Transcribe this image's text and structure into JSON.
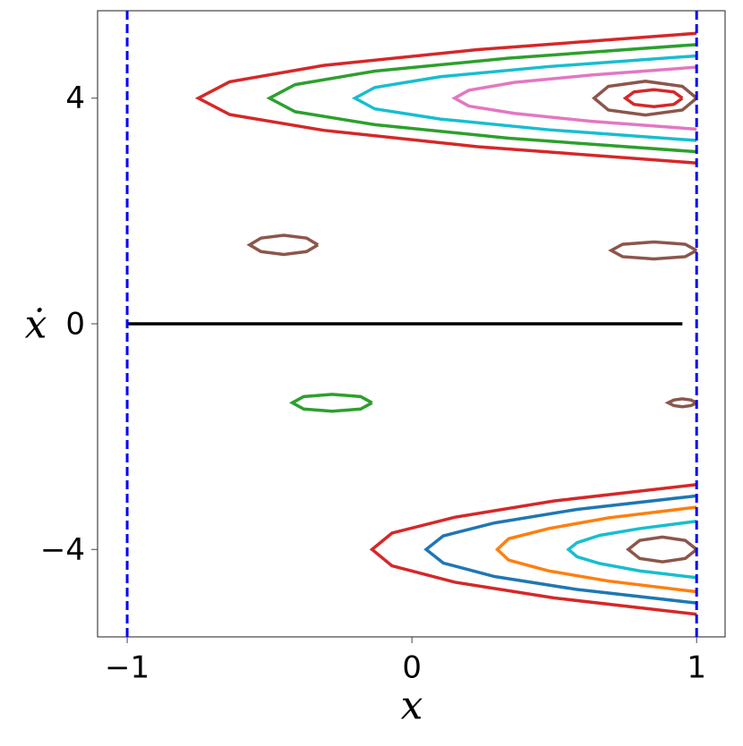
{
  "chart_data": {
    "type": "line",
    "xlabel": "x",
    "ylabel": "ẋ",
    "xlim": [
      -1.104,
      1.1
    ],
    "ylim": [
      -5.55,
      5.55
    ],
    "xticks": [
      {
        "value": -1,
        "label": "−1"
      },
      0,
      1
    ],
    "yticks": [
      {
        "value": -4,
        "label": "−4"
      },
      0,
      4
    ],
    "vlines": [
      -1,
      1
    ],
    "vline_color": "#0000ff",
    "vline_style": "dashed",
    "series": [
      {
        "color": "#d62728",
        "x": [
          1,
          0.23,
          -0.31,
          -0.64,
          -0.75,
          -0.64,
          -0.31,
          0.23,
          1
        ],
        "values": [
          2.85,
          3.14,
          3.43,
          3.71,
          4,
          4.29,
          4.58,
          4.86,
          5.15
        ]
      },
      {
        "color": "#2ca02c",
        "x": [
          1,
          0.34,
          -0.13,
          -0.41,
          -0.5,
          -0.41,
          -0.13,
          0.34,
          1
        ],
        "values": [
          3.05,
          3.29,
          3.53,
          3.76,
          4,
          4.24,
          4.48,
          4.71,
          4.95
        ]
      },
      {
        "color": "#17becf",
        "x": [
          1,
          0.48,
          0.1,
          -0.13,
          -0.2,
          -0.13,
          0.1,
          0.48,
          1
        ],
        "values": [
          3.25,
          3.44,
          3.63,
          3.81,
          4,
          4.19,
          4.38,
          4.56,
          4.75
        ]
      },
      {
        "color": "#e377c2",
        "x": [
          1,
          0.63,
          0.36,
          0.2,
          0.15,
          0.2,
          0.36,
          0.63,
          1
        ],
        "values": [
          3.45,
          3.59,
          3.73,
          3.86,
          4,
          4.14,
          4.28,
          4.41,
          4.55
        ]
      },
      {
        "color": "#8c564b",
        "x": [
          1,
          0.95,
          0.82,
          0.69,
          0.64,
          0.69,
          0.82,
          0.95,
          1
        ],
        "values": [
          4,
          4.21,
          4.3,
          4.21,
          4,
          3.79,
          3.7,
          3.79,
          4
        ]
      },
      {
        "color": "#d62728",
        "x": [
          0.95,
          0.92,
          0.85,
          0.78,
          0.75,
          0.78,
          0.85,
          0.92,
          0.95
        ],
        "values": [
          4,
          4.11,
          4.15,
          4.11,
          4,
          3.89,
          3.85,
          3.89,
          4
        ]
      },
      {
        "color": "#d62728",
        "x": [
          1,
          0.5,
          0.15,
          -0.07,
          -0.14,
          -0.07,
          0.15,
          0.5,
          1
        ],
        "values": [
          -2.85,
          -3.14,
          -3.43,
          -3.71,
          -4,
          -4.29,
          -4.58,
          -4.86,
          -5.15
        ]
      },
      {
        "color": "#1f77b4",
        "x": [
          1,
          0.58,
          0.29,
          0.11,
          0.05,
          0.11,
          0.29,
          0.58,
          1
        ],
        "values": [
          -3.05,
          -3.29,
          -3.53,
          -3.76,
          -4,
          -4.24,
          -4.48,
          -4.71,
          -4.95
        ]
      },
      {
        "color": "#ff7f0e",
        "x": [
          1,
          0.69,
          0.48,
          0.34,
          0.3,
          0.34,
          0.48,
          0.69,
          1
        ],
        "values": [
          -3.25,
          -3.44,
          -3.63,
          -3.81,
          -4,
          -4.19,
          -4.38,
          -4.56,
          -4.75
        ]
      },
      {
        "color": "#17becf",
        "x": [
          1,
          0.8,
          0.66,
          0.58,
          0.55,
          0.58,
          0.66,
          0.8,
          1
        ],
        "values": [
          -3.5,
          -3.63,
          -3.75,
          -3.88,
          -4,
          -4.13,
          -4.25,
          -4.38,
          -4.5
        ]
      },
      {
        "color": "#8c564b",
        "x": [
          1,
          0.96,
          0.88,
          0.8,
          0.76,
          0.8,
          0.88,
          0.96,
          1
        ],
        "values": [
          -4,
          -3.84,
          -3.78,
          -3.84,
          -4,
          -4.16,
          -4.22,
          -4.16,
          -4
        ]
      },
      {
        "color": "#8c564b",
        "x": [
          -0.33,
          -0.37,
          -0.45,
          -0.53,
          -0.57,
          -0.53,
          -0.45,
          -0.37,
          -0.33
        ],
        "values": [
          1.4,
          1.52,
          1.57,
          1.52,
          1.4,
          1.28,
          1.23,
          1.28,
          1.4
        ]
      },
      {
        "color": "#8c564b",
        "x": [
          1,
          0.96,
          0.85,
          0.74,
          0.7,
          0.74,
          0.85,
          0.96,
          1
        ],
        "values": [
          1.3,
          1.41,
          1.45,
          1.41,
          1.3,
          1.19,
          1.15,
          1.19,
          1.3
        ]
      },
      {
        "color": "#2ca02c",
        "x": [
          -0.14,
          -0.18,
          -0.28,
          -0.38,
          -0.42,
          -0.38,
          -0.28,
          -0.18,
          -0.14
        ],
        "values": [
          -1.4,
          -1.29,
          -1.25,
          -1.29,
          -1.4,
          -1.51,
          -1.55,
          -1.51,
          -1.4
        ]
      },
      {
        "color": "#8c564b",
        "x": [
          1,
          0.98,
          0.95,
          0.92,
          0.9,
          0.92,
          0.95,
          0.98,
          1
        ],
        "values": [
          -1.4,
          -1.35,
          -1.33,
          -1.35,
          -1.4,
          -1.45,
          -1.47,
          -1.45,
          -1.4
        ]
      },
      {
        "color": "#000000",
        "x": [
          -1,
          0.95
        ],
        "values": [
          0,
          0
        ]
      }
    ]
  }
}
